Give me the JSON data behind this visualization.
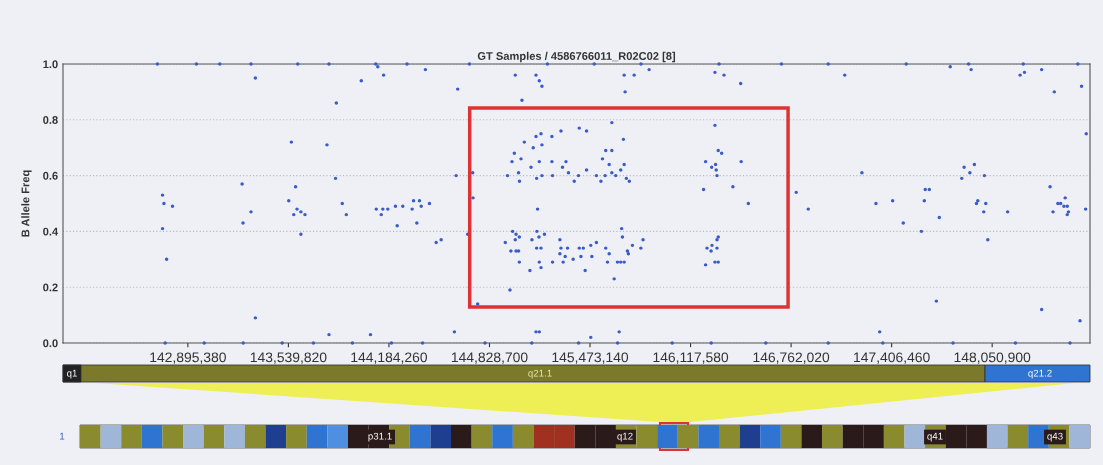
{
  "chart_data": {
    "type": "scatter",
    "title": "GT Samples / 4586766011_R02C02 [8]",
    "ylabel": "B Allele Freq",
    "x": [
      142733000,
      142742000,
      142797000,
      142733000,
      142759000,
      143243000,
      143249000,
      143300000,
      143328000,
      143328000,
      143559000,
      143542000,
      143586000,
      143574000,
      143595000,
      143620000,
      143646000,
      143620000,
      143787000,
      143847000,
      143842000,
      143885000,
      143911000,
      144007000,
      144150000,
      144113000,
      144103000,
      144135000,
      144145000,
      144177000,
      144226000,
      144273000,
      144237000,
      144333000,
      144342000,
      144380000,
      144391000,
      144363000,
      144444000,
      144487000,
      144519000,
      144418000,
      144615000,
      144625000,
      143800000,
      144066000,
      144604000,
      144721000,
      144723000,
      144689000,
      144994000,
      145037000,
      145127000,
      145148000,
      145165000,
      145692000,
      145756000,
      145698000,
      145852000,
      146274000,
      146332000,
      146439000,
      145613000,
      146274000,
      145052000,
      145127000,
      145159000,
      145109000,
      145165000,
      145229000,
      145287000,
      145404000,
      145451000,
      144988000,
      144973000,
      145031000,
      145015000,
      145021000,
      144944000,
      145095000,
      145148000,
      145131000,
      145165000,
      145229000,
      145233000,
      145297000,
      145319000,
      145335000,
      145372000,
      145399000,
      145451000,
      145514000,
      145543000,
      145553000,
      145574000,
      145613000,
      145596000,
      145570000,
      145613000,
      145638000,
      145670000,
      145692000,
      145687000,
      145706000,
      145725000,
      145137000,
      144930000,
      144977000,
      144999000,
      144994000,
      145020000,
      144966000,
      144999000,
      145015000,
      145020000,
      144960000,
      145088000,
      145101000,
      145133000,
      145146000,
      145181000,
      145131000,
      145159000,
      145148000,
      145159000,
      145233000,
      145280000,
      145287000,
      145280000,
      145329000,
      145314000,
      145301000,
      145365000,
      145404000,
      145430000,
      145415000,
      145442000,
      145478000,
      145485000,
      145514000,
      145574000,
      145596000,
      145585000,
      145628000,
      145649000,
      145670000,
      145692000,
      145676000,
      145681000,
      145713000,
      145719000,
      145745000,
      145799000,
      145813000,
      146214000,
      146253000,
      146278000,
      146295000,
      146317000,
      146282000,
      146287000,
      146201000,
      146389000,
      146442000,
      146488000,
      146223000,
      146255000,
      146287000,
      146295000,
      146249000,
      146287000,
      146214000,
      146274000,
      146295000,
      146795000,
      146872000,
      145127000,
      145148000,
      145660000,
      145478000,
      144753000,
      147106000,
      147782000,
      147916000,
      148230000,
      148258000,
      148368000,
      148449000,
      148624000,
      148654000,
      147216000,
      147306000,
      147413000,
      147481000,
      147597000,
      147622000,
      147648000,
      147616000,
      147712000,
      147693000,
      147330000,
      147856000,
      147871000,
      147908000,
      147937000,
      148001000,
      147950000,
      147959000,
      148010000,
      147997000,
      148023000,
      148150000,
      148368000,
      148422000,
      148441000,
      148472000,
      148490000,
      148519000,
      148511000,
      148532000,
      148540000,
      148532000,
      148650000,
      148614000,
      142700000,
      142950000,
      143100000,
      143300000,
      143600000,
      143800000,
      144100000,
      144300000,
      144700000,
      145200000,
      145500000,
      145800000,
      146300000,
      146700000,
      147000000,
      147500000,
      147900000,
      148250000,
      148600000,
      142750000,
      143000000,
      143250000,
      143500000,
      143700000,
      143950000,
      144200000,
      144400000,
      144800000,
      145100000,
      145400000,
      145650000,
      146000000,
      146250000,
      146600000,
      147000000,
      147350000,
      147800000,
      148200000,
      148550000
    ],
    "values": [
      0.53,
      0.5,
      0.49,
      0.41,
      0.3,
      0.57,
      0.43,
      0.47,
      0.95,
      0.09,
      0.72,
      0.51,
      0.56,
      0.46,
      0.48,
      0.47,
      0.46,
      0.39,
      0.71,
      0.86,
      0.59,
      0.5,
      0.46,
      0.94,
      0.96,
      0.99,
      0.48,
      0.46,
      0.48,
      0.48,
      0.49,
      0.49,
      0.42,
      0.48,
      0.51,
      0.51,
      0.49,
      0.43,
      0.5,
      0.36,
      0.37,
      0.98,
      0.6,
      0.91,
      0.03,
      0.03,
      0.04,
      0.61,
      0.52,
      0.39,
      0.96,
      0.87,
      0.96,
      0.94,
      0.92,
      0.96,
      0.96,
      0.9,
      0.98,
      0.97,
      0.96,
      0.93,
      0.79,
      0.78,
      0.72,
      0.74,
      0.75,
      0.7,
      0.71,
      0.74,
      0.76,
      0.77,
      0.76,
      0.68,
      0.65,
      0.66,
      0.61,
      0.58,
      0.6,
      0.63,
      0.65,
      0.59,
      0.6,
      0.65,
      0.6,
      0.63,
      0.65,
      0.61,
      0.58,
      0.6,
      0.62,
      0.6,
      0.58,
      0.66,
      0.69,
      0.69,
      0.64,
      0.6,
      0.61,
      0.6,
      0.62,
      0.64,
      0.73,
      0.59,
      0.58,
      0.48,
      0.36,
      0.4,
      0.39,
      0.37,
      0.38,
      0.33,
      0.33,
      0.33,
      0.29,
      0.19,
      0.26,
      0.37,
      0.4,
      0.38,
      0.39,
      0.34,
      0.34,
      0.29,
      0.27,
      0.29,
      0.37,
      0.34,
      0.32,
      0.34,
      0.31,
      0.29,
      0.3,
      0.34,
      0.34,
      0.31,
      0.26,
      0.35,
      0.31,
      0.36,
      0.34,
      0.32,
      0.29,
      0.23,
      0.29,
      0.29,
      0.29,
      0.41,
      0.38,
      0.33,
      0.32,
      0.35,
      0.34,
      0.37,
      0.65,
      0.63,
      0.64,
      0.69,
      0.68,
      0.62,
      0.6,
      0.55,
      0.56,
      0.65,
      0.5,
      0.34,
      0.35,
      0.37,
      0.38,
      0.33,
      0.34,
      0.28,
      0.29,
      0.29,
      0.54,
      0.48,
      0.04,
      0.04,
      0.04,
      0.02,
      0.14,
      0.96,
      0.99,
      0.98,
      0.96,
      0.97,
      0.98,
      0.9,
      0.92,
      0.75,
      0.61,
      0.5,
      0.51,
      0.43,
      0.4,
      0.55,
      0.55,
      0.51,
      0.45,
      0.15,
      0.04,
      0.59,
      0.63,
      0.61,
      0.64,
      0.6,
      0.5,
      0.51,
      0.5,
      0.47,
      0.37,
      0.47,
      0.12,
      0.56,
      0.47,
      0.5,
      0.5,
      0.52,
      0.49,
      0.49,
      0.47,
      0.46,
      0.48,
      0.08,
      1.0,
      1.0,
      1.0,
      1.0,
      1.0,
      1.0,
      1.0,
      1.0,
      1.0,
      1.0,
      1.0,
      1.0,
      1.0,
      1.0,
      1.0,
      1.0,
      1.0,
      1.0,
      1.0,
      0.0,
      0.0,
      0.0,
      0.0,
      0.0,
      0.0,
      0.0,
      0.0,
      0.0,
      0.0,
      0.0,
      0.0,
      0.0,
      0.0,
      0.0,
      0.0,
      0.0,
      0.0,
      0.0,
      0.0
    ],
    "color": "#3a5cc8",
    "marker": "circle",
    "xlim": [
      142095000,
      148678000
    ],
    "xticks": [
      {
        "value": 142895380,
        "label": "142,895,380"
      },
      {
        "value": 143539820,
        "label": "143,539,820"
      },
      {
        "value": 144184260,
        "label": "144,184,260"
      },
      {
        "value": 144828700,
        "label": "144,828,700"
      },
      {
        "value": 145473140,
        "label": "145,473,140"
      },
      {
        "value": 146117580,
        "label": "146,117,580"
      },
      {
        "value": 146762020,
        "label": "146,762,020"
      },
      {
        "value": 147406460,
        "label": "147,406,460"
      },
      {
        "value": 148050900,
        "label": "148,050,900"
      }
    ],
    "ylim": [
      0,
      1
    ],
    "yticks": [
      {
        "value": 0,
        "label": "0.0"
      },
      {
        "value": 0.2,
        "label": "0.2"
      },
      {
        "value": 0.4,
        "label": "0.4"
      },
      {
        "value": 0.6,
        "label": "0.6"
      },
      {
        "value": 0.8,
        "label": "0.8"
      },
      {
        "value": 1,
        "label": "1.0"
      }
    ],
    "grid": "y",
    "annotations": [
      "q1",
      "q21.1",
      "q21.2",
      "1",
      "p31.1",
      "q12",
      "q41",
      "q43"
    ]
  }
}
